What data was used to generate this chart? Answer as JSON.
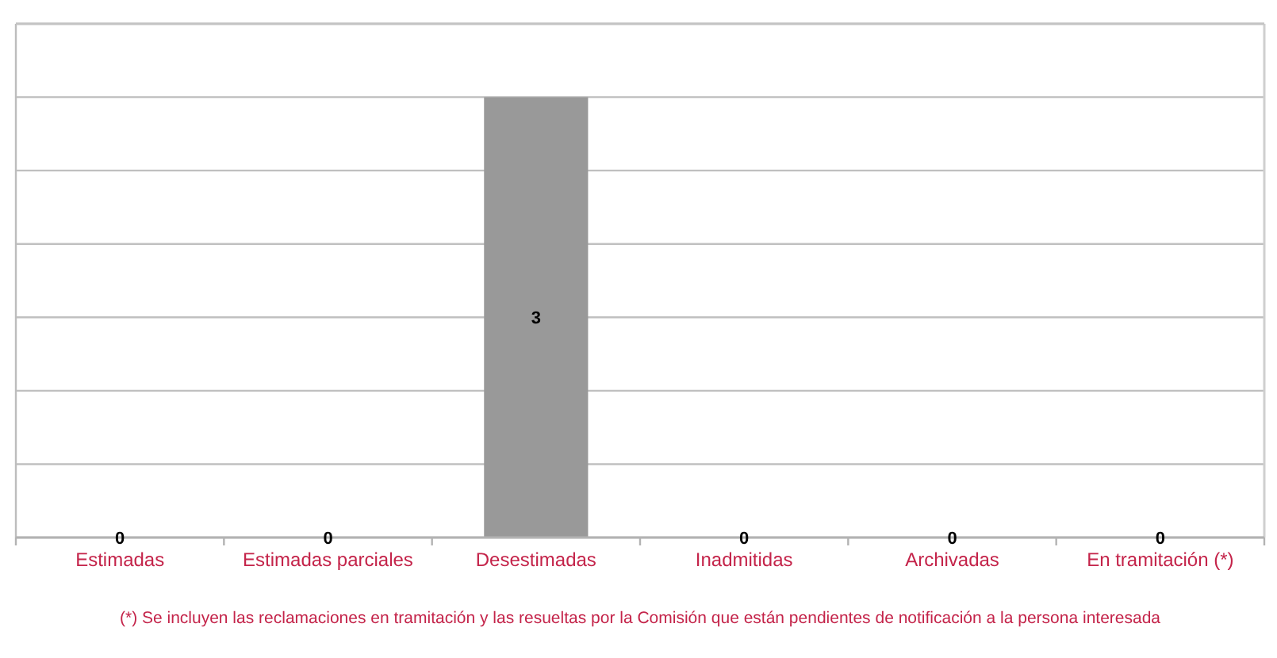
{
  "chart_data": {
    "type": "bar",
    "categories": [
      "Estimadas",
      "Estimadas parciales",
      "Desestimadas",
      "Inadmitidas",
      "Archivadas",
      "En tramitación (*)"
    ],
    "values": [
      0,
      0,
      3,
      0,
      0,
      0
    ],
    "color": "#999999",
    "ylim": [
      0,
      3.5
    ],
    "yticks": [
      {
        "value": 0,
        "label": null
      },
      {
        "value": 0.5,
        "label": null
      },
      {
        "value": 1,
        "label": null
      },
      {
        "value": 1.5,
        "label": null
      },
      {
        "value": 2,
        "label": null
      },
      {
        "value": 2.5,
        "label": null
      },
      {
        "value": 3,
        "label": null
      },
      {
        "value": 3.5,
        "label": null
      }
    ],
    "grid": "y",
    "tick_labels": "x",
    "data_labels": true,
    "annotations": [
      "(*) Se incluyen las reclamaciones en tramitación y las resueltas por la Comisión que están pendientes de notificación a la persona interesada"
    ]
  }
}
